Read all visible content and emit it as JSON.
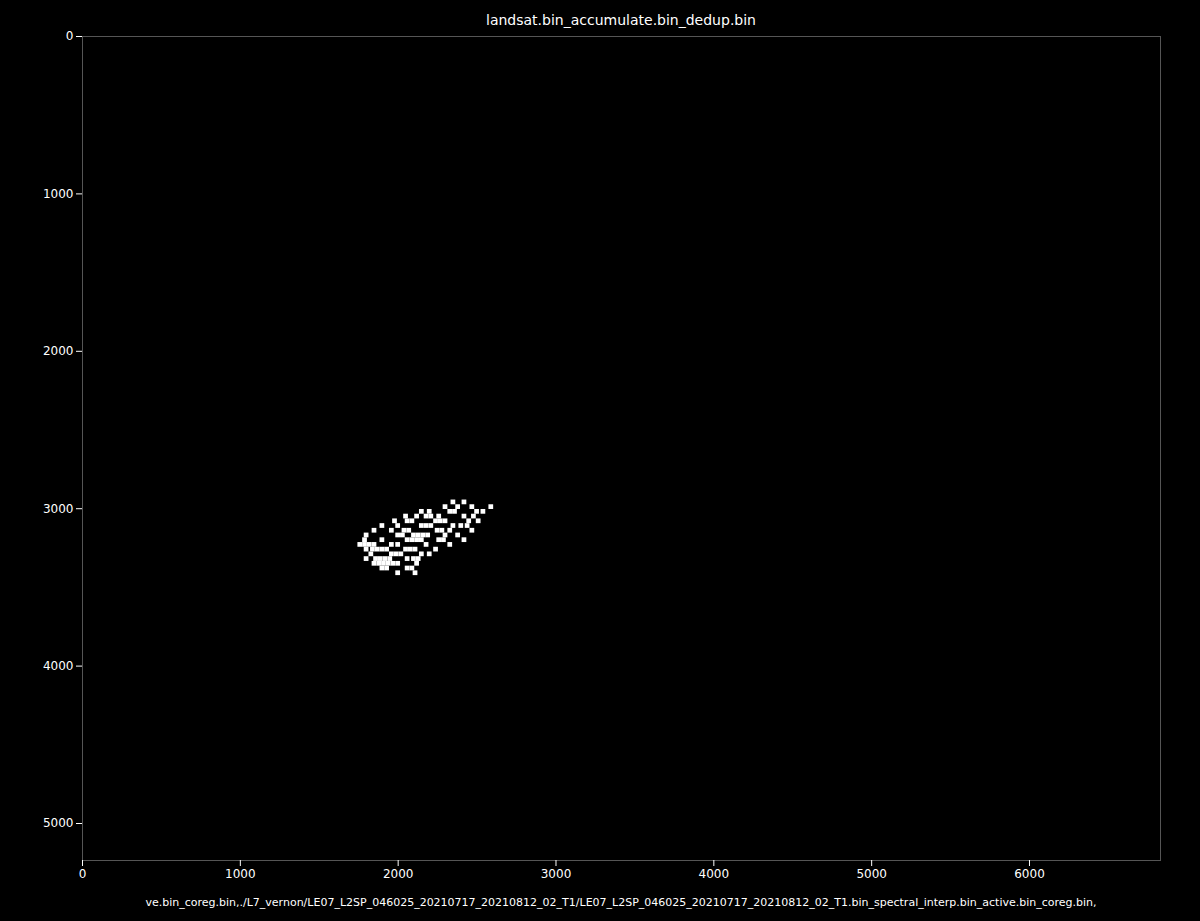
{
  "chart_data": {
    "type": "image",
    "title": "landsat.bin_accumulate.bin_dedup.bin",
    "x_label": "ve.bin_coreg.bin,./L7_vernon/LE07_L2SP_046025_20210717_20210812_02_T1/LE07_L2SP_046025_20210717_20210812_02_T1.bin_spectral_interp.bin_active.bin_coreg.bin,",
    "xlim": [
      0,
      6830
    ],
    "ylim": [
      5235,
      0
    ],
    "xticks": [
      0,
      1000,
      2000,
      3000,
      4000,
      5000,
      6000
    ],
    "yticks": [
      0,
      1000,
      2000,
      3000,
      4000,
      5000
    ],
    "color": "#ffffff",
    "cell_size": 30,
    "pixels": [
      [
        2350,
        2960
      ],
      [
        2420,
        2960
      ],
      [
        2300,
        2990
      ],
      [
        2380,
        2990
      ],
      [
        2470,
        2990
      ],
      [
        2590,
        2990
      ],
      [
        2150,
        3020
      ],
      [
        2200,
        3020
      ],
      [
        2330,
        3020
      ],
      [
        2360,
        3020
      ],
      [
        2500,
        3020
      ],
      [
        2540,
        3020
      ],
      [
        2050,
        3050
      ],
      [
        2120,
        3050
      ],
      [
        2180,
        3050
      ],
      [
        2210,
        3050
      ],
      [
        2260,
        3050
      ],
      [
        2420,
        3050
      ],
      [
        2480,
        3050
      ],
      [
        1980,
        3080
      ],
      [
        2060,
        3080
      ],
      [
        2090,
        3080
      ],
      [
        2240,
        3080
      ],
      [
        2270,
        3080
      ],
      [
        2300,
        3080
      ],
      [
        2450,
        3080
      ],
      [
        2510,
        3080
      ],
      [
        1900,
        3110
      ],
      [
        2000,
        3110
      ],
      [
        2150,
        3110
      ],
      [
        2180,
        3110
      ],
      [
        2210,
        3110
      ],
      [
        2350,
        3110
      ],
      [
        2400,
        3110
      ],
      [
        2440,
        3110
      ],
      [
        1850,
        3140
      ],
      [
        1960,
        3140
      ],
      [
        2040,
        3140
      ],
      [
        2070,
        3140
      ],
      [
        2250,
        3140
      ],
      [
        2280,
        3140
      ],
      [
        2330,
        3140
      ],
      [
        2470,
        3140
      ],
      [
        1800,
        3170
      ],
      [
        2000,
        3170
      ],
      [
        2030,
        3170
      ],
      [
        2100,
        3170
      ],
      [
        2130,
        3170
      ],
      [
        2160,
        3170
      ],
      [
        2190,
        3170
      ],
      [
        2300,
        3170
      ],
      [
        2380,
        3170
      ],
      [
        1790,
        3200
      ],
      [
        1900,
        3200
      ],
      [
        2060,
        3200
      ],
      [
        2090,
        3200
      ],
      [
        2120,
        3200
      ],
      [
        2150,
        3200
      ],
      [
        2260,
        3200
      ],
      [
        2290,
        3200
      ],
      [
        2420,
        3200
      ],
      [
        1760,
        3230
      ],
      [
        1790,
        3230
      ],
      [
        1820,
        3230
      ],
      [
        1850,
        3230
      ],
      [
        1960,
        3230
      ],
      [
        2000,
        3230
      ],
      [
        2180,
        3230
      ],
      [
        2330,
        3230
      ],
      [
        1800,
        3260
      ],
      [
        1840,
        3260
      ],
      [
        1870,
        3260
      ],
      [
        1900,
        3260
      ],
      [
        1930,
        3260
      ],
      [
        2050,
        3260
      ],
      [
        2080,
        3260
      ],
      [
        2110,
        3260
      ],
      [
        2240,
        3260
      ],
      [
        1830,
        3290
      ],
      [
        1960,
        3290
      ],
      [
        1990,
        3290
      ],
      [
        2020,
        3290
      ],
      [
        2150,
        3290
      ],
      [
        2200,
        3290
      ],
      [
        1800,
        3320
      ],
      [
        1860,
        3320
      ],
      [
        1890,
        3320
      ],
      [
        1920,
        3320
      ],
      [
        1950,
        3320
      ],
      [
        2060,
        3320
      ],
      [
        2100,
        3320
      ],
      [
        2130,
        3320
      ],
      [
        1850,
        3350
      ],
      [
        1880,
        3350
      ],
      [
        1910,
        3350
      ],
      [
        1940,
        3350
      ],
      [
        1970,
        3350
      ],
      [
        2000,
        3350
      ],
      [
        2120,
        3350
      ],
      [
        1900,
        3380
      ],
      [
        1930,
        3380
      ],
      [
        2060,
        3380
      ],
      [
        2090,
        3380
      ],
      [
        2000,
        3410
      ],
      [
        2110,
        3410
      ]
    ]
  }
}
